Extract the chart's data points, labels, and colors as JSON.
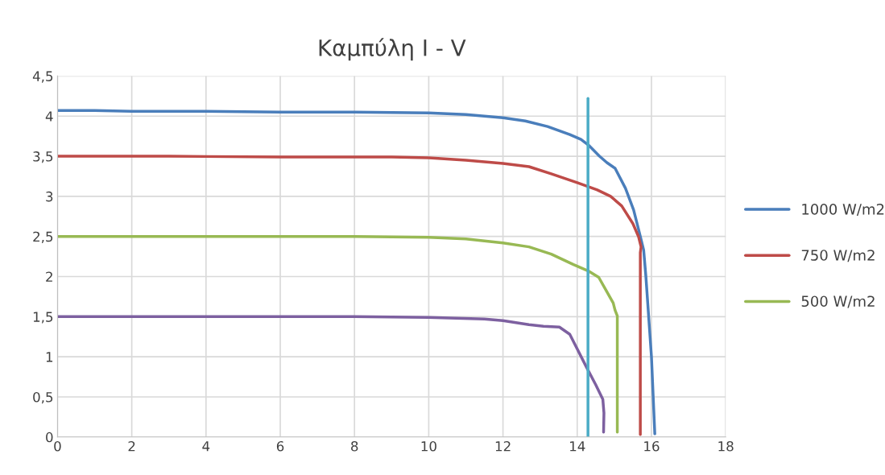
{
  "chart_data": {
    "type": "line",
    "title": "Καμπύλη I - V",
    "xlim": [
      0,
      18
    ],
    "xticks": [
      0,
      2,
      4,
      6,
      8,
      10,
      12,
      14,
      16,
      18
    ],
    "ylim": [
      0,
      4.5
    ],
    "yticks": [
      0,
      {
        "value": 0.5,
        "label": "0,5"
      },
      1,
      {
        "value": 1.5,
        "label": "1,5"
      },
      2,
      {
        "value": 2.5,
        "label": "2,5"
      },
      3,
      {
        "value": 3.5,
        "label": "3,5"
      },
      4,
      {
        "value": 4.5,
        "label": "4,5"
      }
    ],
    "grid": true,
    "legend": "right",
    "marker": "none",
    "line_style": "solid",
    "series": [
      {
        "name": "1000 W/m2",
        "color": "#4a7ebb",
        "x": [
          0,
          1,
          2,
          4,
          6,
          8,
          10,
          11,
          12,
          12.6,
          13.2,
          13.8,
          14.1,
          14.3,
          14.6,
          14.8,
          15.02,
          15.3,
          15.52,
          15.7,
          15.79,
          15.85,
          16.0,
          16.09
        ],
        "values": [
          4.07,
          4.07,
          4.06,
          4.06,
          4.05,
          4.05,
          4.04,
          4.02,
          3.98,
          3.94,
          3.87,
          3.77,
          3.71,
          3.64,
          3.5,
          3.42,
          3.35,
          3.1,
          2.83,
          2.5,
          2.33,
          2.0,
          1.0,
          0.04
        ]
      },
      {
        "name": "750 W/m2",
        "color": "#be4b48",
        "x": [
          0,
          3,
          6,
          9,
          10,
          11,
          12,
          12.7,
          13.3,
          14,
          14.54,
          14.9,
          15.2,
          15.5,
          15.65,
          15.72,
          15.7,
          15.7
        ],
        "values": [
          3.5,
          3.5,
          3.49,
          3.49,
          3.48,
          3.45,
          3.41,
          3.37,
          3.28,
          3.17,
          3.08,
          3.0,
          2.88,
          2.66,
          2.5,
          2.37,
          2.3,
          0.03
        ]
      },
      {
        "name": "500 W/m2",
        "color": "#98b954",
        "x": [
          0,
          4,
          8,
          10,
          11,
          12,
          12.7,
          13.3,
          13.9,
          14.3,
          14.58,
          14.75,
          14.97,
          15.02,
          15.08,
          15.08
        ],
        "values": [
          2.5,
          2.5,
          2.5,
          2.49,
          2.47,
          2.42,
          2.37,
          2.28,
          2.15,
          2.07,
          1.99,
          1.85,
          1.67,
          1.58,
          1.51,
          0.06
        ]
      },
      {
        "color": "#7d60a0",
        "x": [
          0,
          4,
          8,
          10,
          11.5,
          12,
          12.7,
          13.09,
          13.52,
          13.8,
          14.25,
          14.5,
          14.69,
          14.72,
          14.71
        ],
        "values": [
          1.5,
          1.5,
          1.5,
          1.49,
          1.47,
          1.45,
          1.4,
          1.38,
          1.37,
          1.28,
          0.87,
          0.65,
          0.47,
          0.3,
          0.06
        ]
      },
      {
        "color": "#4bacc6",
        "x": [
          14.29,
          14.29
        ],
        "values": [
          0,
          4.22
        ]
      }
    ]
  }
}
